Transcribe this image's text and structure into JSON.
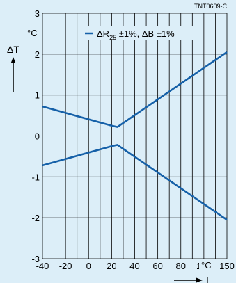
{
  "chart_data": {
    "type": "line",
    "code": "TNT0609-C",
    "ylabel": "ΔT",
    "yunit": "°C",
    "xlabel": "T",
    "xunit": "°C",
    "legend": {
      "line": "ΔR",
      "sub": "25",
      "rest": " ±1%, ΔB ±1%"
    },
    "xticks": [
      -40,
      -20,
      0,
      20,
      40,
      60,
      80,
      100,
      150
    ],
    "xtick_labels": [
      "-40",
      "-20",
      "0",
      "20",
      "40",
      "60",
      "80",
      "100",
      "150"
    ],
    "yticks": [
      3,
      2,
      1,
      0,
      -1,
      -2,
      -3
    ],
    "ytick_labels": [
      "3",
      "2",
      "1",
      "0",
      "-1",
      "-2",
      "-3"
    ],
    "xlim": [
      -40,
      150
    ],
    "ylim": [
      -3,
      3
    ],
    "grid": true,
    "series": [
      {
        "name": "upper",
        "x": [
          -40,
          20,
          25,
          150
        ],
        "y": [
          0.72,
          0.25,
          0.22,
          2.05
        ]
      },
      {
        "name": "lower",
        "x": [
          -40,
          20,
          25,
          150
        ],
        "y": [
          -0.72,
          -0.25,
          -0.22,
          -2.05
        ]
      }
    ],
    "colors": {
      "line": "#1560a8",
      "background": "#dceef8",
      "grid": "#000000"
    }
  }
}
